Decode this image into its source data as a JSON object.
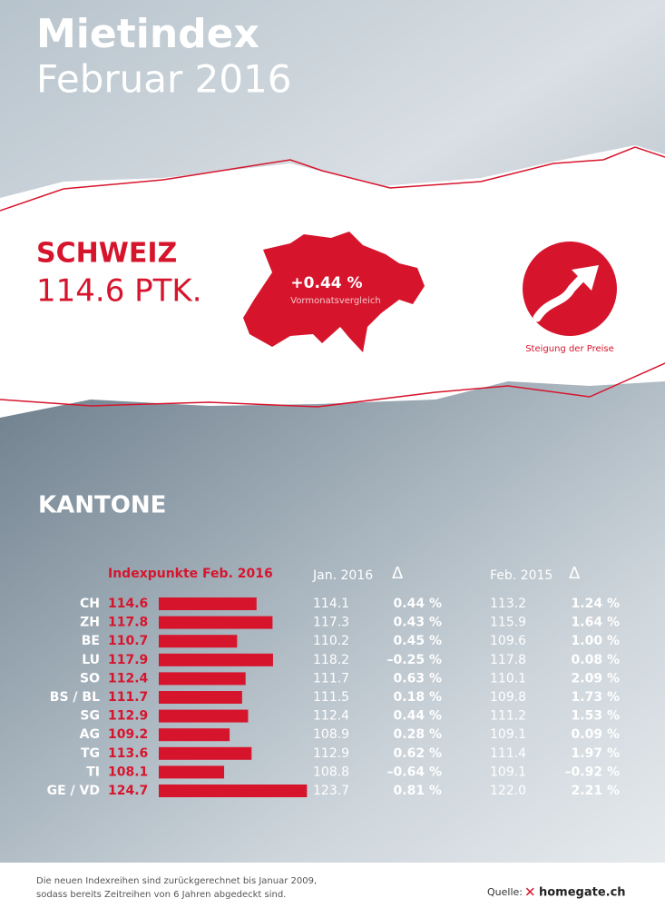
{
  "header": {
    "title": "Mietindex",
    "subtitle": "Februar 2016"
  },
  "summary": {
    "region": "SCHWEIZ",
    "value": "114.6 PTK.",
    "change": "+0.44 %",
    "change_label": "Vormonatsvergleich",
    "trend_label": "Steigung der Preise"
  },
  "kantone": {
    "title": "KANTONE",
    "columns": {
      "current": "Indexpunkte Feb. 2016",
      "previous_month": "Jan. 2016",
      "previous_year": "Feb. 2015",
      "delta": "Δ"
    },
    "rows": [
      {
        "code": "CH",
        "index": 114.6,
        "jan": "114.1",
        "jan_change": "0.44 %",
        "feb15": "113.2",
        "feb15_change": "1.24 %"
      },
      {
        "code": "ZH",
        "index": 117.8,
        "jan": "117.3",
        "jan_change": "0.43 %",
        "feb15": "115.9",
        "feb15_change": "1.64 %"
      },
      {
        "code": "BE",
        "index": 110.7,
        "jan": "110.2",
        "jan_change": "0.45 %",
        "feb15": "109.6",
        "feb15_change": "1.00 %"
      },
      {
        "code": "LU",
        "index": 117.9,
        "jan": "118.2",
        "jan_change": "–0.25 %",
        "feb15": "117.8",
        "feb15_change": "0.08 %"
      },
      {
        "code": "SO",
        "index": 112.4,
        "jan": "111.7",
        "jan_change": "0.63 %",
        "feb15": "110.1",
        "feb15_change": "2.09 %"
      },
      {
        "code": "BS / BL",
        "index": 111.7,
        "jan": "111.5",
        "jan_change": "0.18 %",
        "feb15": "109.8",
        "feb15_change": "1.73 %"
      },
      {
        "code": "SG",
        "index": 112.9,
        "jan": "112.4",
        "jan_change": "0.44 %",
        "feb15": "111.2",
        "feb15_change": "1.53 %"
      },
      {
        "code": "AG",
        "index": 109.2,
        "jan": "108.9",
        "jan_change": "0.28 %",
        "feb15": "109.1",
        "feb15_change": "0.09 %"
      },
      {
        "code": "TG",
        "index": 113.6,
        "jan": "112.9",
        "jan_change": "0.62 %",
        "feb15": "111.4",
        "feb15_change": "1.97 %"
      },
      {
        "code": "TI",
        "index": 108.1,
        "jan": "108.8",
        "jan_change": "–0.64 %",
        "feb15": "109.1",
        "feb15_change": "–0.92 %"
      },
      {
        "code": "GE / VD",
        "index": 124.7,
        "jan": "123.7",
        "jan_change": "0.81 %",
        "feb15": "122.0",
        "feb15_change": "2.21 %"
      }
    ]
  },
  "footer": {
    "note_lines": [
      "Die neuen Indexreihen sind zurückgerechnet bis Januar 2009,",
      "sodass bereits Zeitreihen von 6 Jahren abgedeckt sind."
    ],
    "source_label": "Quelle:",
    "brand": "homegate.ch"
  }
}
